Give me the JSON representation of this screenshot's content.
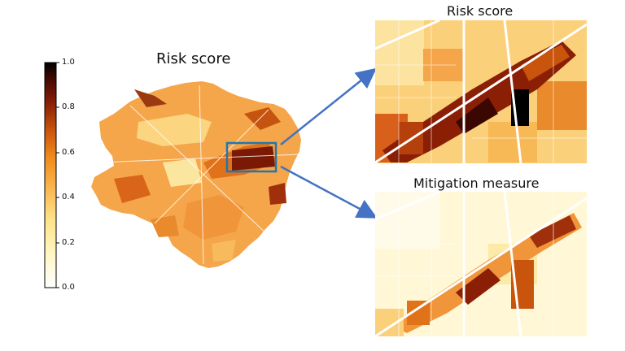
{
  "main_map": {
    "title": "Risk score"
  },
  "zoom_top": {
    "title": "Risk score"
  },
  "zoom_bottom": {
    "title": "Mitigation measure"
  },
  "colorbar": {
    "ticks": [
      "1.0",
      "0.8",
      "0.6",
      "0.4",
      "0.2",
      "0.0"
    ],
    "colormap": "afmhot_r",
    "range": [
      0,
      1
    ]
  },
  "colors": {
    "highlight_box": "#1f77b4",
    "arrow": "#4472c4"
  }
}
